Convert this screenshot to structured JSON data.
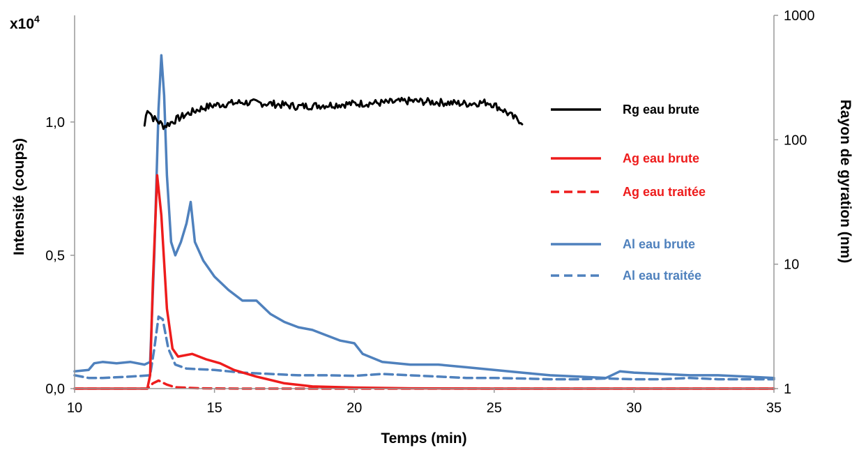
{
  "chart_data": {
    "type": "line",
    "xlabel": "Temps (min)",
    "ylabel": "Intensité (coups)",
    "y_multiplier_label": "x10",
    "y_multiplier_exponent": "4",
    "y2label": "Rayon de gyration (nm)",
    "xlim": [
      10,
      35
    ],
    "ylim": [
      0,
      1.4
    ],
    "y2lim": [
      1,
      1000
    ],
    "y2_scale": "log",
    "grid": false,
    "legend_position": "right",
    "x_ticks": [
      10,
      15,
      20,
      25,
      30,
      35
    ],
    "x_tick_labels": [
      "10",
      "15",
      "20",
      "25",
      "30",
      "35"
    ],
    "y_ticks": [
      0,
      0.5,
      1.0
    ],
    "y_tick_labels": [
      "0,0",
      "0,5",
      "1,0"
    ],
    "y2_ticks": [
      1,
      10,
      100,
      1000
    ],
    "y2_tick_labels": [
      "1",
      "10",
      "100",
      "1000"
    ],
    "series": [
      {
        "name": "Rg eau brute",
        "color": "#000000",
        "dash": "solid",
        "axis": "right",
        "noise": 0.03,
        "points": [
          [
            12.5,
            130
          ],
          [
            12.6,
            180
          ],
          [
            12.8,
            150
          ],
          [
            13.0,
            140
          ],
          [
            13.2,
            128
          ],
          [
            13.5,
            140
          ],
          [
            14.0,
            160
          ],
          [
            14.5,
            178
          ],
          [
            15.0,
            190
          ],
          [
            16.0,
            200
          ],
          [
            17.0,
            195
          ],
          [
            18.0,
            185
          ],
          [
            19.0,
            190
          ],
          [
            20.0,
            195
          ],
          [
            21.0,
            198
          ],
          [
            22.0,
            205
          ],
          [
            23.0,
            200
          ],
          [
            24.0,
            195
          ],
          [
            24.8,
            200
          ],
          [
            25.3,
            175
          ],
          [
            25.7,
            150
          ],
          [
            26.0,
            140
          ]
        ]
      },
      {
        "name": "Ag eau brute",
        "color": "#ee1c1c",
        "dash": "solid",
        "axis": "left",
        "points": [
          [
            10,
            0
          ],
          [
            12.6,
            0
          ],
          [
            12.7,
            0.05
          ],
          [
            12.8,
            0.4
          ],
          [
            12.95,
            0.8
          ],
          [
            13.1,
            0.65
          ],
          [
            13.3,
            0.3
          ],
          [
            13.5,
            0.15
          ],
          [
            13.7,
            0.12
          ],
          [
            14.2,
            0.13
          ],
          [
            14.7,
            0.11
          ],
          [
            15.2,
            0.095
          ],
          [
            15.7,
            0.07
          ],
          [
            16.5,
            0.045
          ],
          [
            17.5,
            0.02
          ],
          [
            18.5,
            0.008
          ],
          [
            20.0,
            0.004
          ],
          [
            22,
            0.001
          ],
          [
            25,
            0
          ],
          [
            35,
            0
          ]
        ]
      },
      {
        "name": "Ag eau traitée",
        "color": "#ee1c1c",
        "dash": "dashed",
        "axis": "left",
        "points": [
          [
            10,
            0
          ],
          [
            12.6,
            0
          ],
          [
            12.8,
            0.02
          ],
          [
            13.0,
            0.03
          ],
          [
            13.3,
            0.015
          ],
          [
            13.6,
            0.005
          ],
          [
            14.5,
            0.001
          ],
          [
            16,
            0
          ],
          [
            35,
            0
          ]
        ]
      },
      {
        "name": "Al eau brute",
        "color": "#4f81bd",
        "dash": "solid",
        "axis": "left",
        "points": [
          [
            10,
            0.065
          ],
          [
            10.5,
            0.07
          ],
          [
            10.7,
            0.095
          ],
          [
            11,
            0.1
          ],
          [
            11.5,
            0.095
          ],
          [
            12,
            0.1
          ],
          [
            12.5,
            0.09
          ],
          [
            12.7,
            0.1
          ],
          [
            12.85,
            0.5
          ],
          [
            13.0,
            1.05
          ],
          [
            13.1,
            1.25
          ],
          [
            13.2,
            1.1
          ],
          [
            13.3,
            0.8
          ],
          [
            13.45,
            0.55
          ],
          [
            13.6,
            0.5
          ],
          [
            13.8,
            0.55
          ],
          [
            14.0,
            0.62
          ],
          [
            14.15,
            0.7
          ],
          [
            14.3,
            0.55
          ],
          [
            14.6,
            0.48
          ],
          [
            15.0,
            0.42
          ],
          [
            15.5,
            0.37
          ],
          [
            16.0,
            0.33
          ],
          [
            16.5,
            0.33
          ],
          [
            17.0,
            0.28
          ],
          [
            17.5,
            0.25
          ],
          [
            18.0,
            0.23
          ],
          [
            18.5,
            0.22
          ],
          [
            19.0,
            0.2
          ],
          [
            19.5,
            0.18
          ],
          [
            20.0,
            0.17
          ],
          [
            20.3,
            0.13
          ],
          [
            21.0,
            0.1
          ],
          [
            22.0,
            0.09
          ],
          [
            23.0,
            0.09
          ],
          [
            24.0,
            0.08
          ],
          [
            25.0,
            0.07
          ],
          [
            26.0,
            0.06
          ],
          [
            27.0,
            0.05
          ],
          [
            28.0,
            0.045
          ],
          [
            29.0,
            0.04
          ],
          [
            29.5,
            0.065
          ],
          [
            30.0,
            0.06
          ],
          [
            31.0,
            0.055
          ],
          [
            32.0,
            0.05
          ],
          [
            33.0,
            0.05
          ],
          [
            34.0,
            0.045
          ],
          [
            35.0,
            0.04
          ]
        ]
      },
      {
        "name": "Al eau traitée",
        "color": "#4f81bd",
        "dash": "dashed",
        "axis": "left",
        "points": [
          [
            10,
            0.05
          ],
          [
            10.5,
            0.04
          ],
          [
            11,
            0.04
          ],
          [
            12,
            0.045
          ],
          [
            12.7,
            0.05
          ],
          [
            12.85,
            0.15
          ],
          [
            13.0,
            0.27
          ],
          [
            13.15,
            0.26
          ],
          [
            13.35,
            0.15
          ],
          [
            13.6,
            0.09
          ],
          [
            14.0,
            0.075
          ],
          [
            15.0,
            0.07
          ],
          [
            16.0,
            0.06
          ],
          [
            17.0,
            0.055
          ],
          [
            18.0,
            0.05
          ],
          [
            19.0,
            0.05
          ],
          [
            20.0,
            0.048
          ],
          [
            21.0,
            0.055
          ],
          [
            22.0,
            0.05
          ],
          [
            23.0,
            0.045
          ],
          [
            24.0,
            0.04
          ],
          [
            25.0,
            0.04
          ],
          [
            26.0,
            0.038
          ],
          [
            27.0,
            0.035
          ],
          [
            28.0,
            0.035
          ],
          [
            29.0,
            0.038
          ],
          [
            30.0,
            0.035
          ],
          [
            31.0,
            0.035
          ],
          [
            32.0,
            0.04
          ],
          [
            33.0,
            0.035
          ],
          [
            34.0,
            0.035
          ],
          [
            35.0,
            0.035
          ]
        ]
      }
    ]
  }
}
